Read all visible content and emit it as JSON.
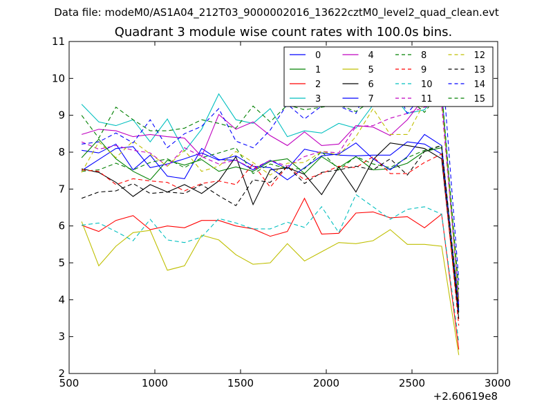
{
  "suptitle": "Data file: modeM0/AS1A04_212T03_9000002016_13622cztM0_level2_quad_clean.evt",
  "chart_data": {
    "type": "line",
    "title": "Quadrant 3 module wise count rates with 100.0s bins.",
    "xlabel": "",
    "ylabel": "",
    "x_offset_label": "+2.60619e8",
    "xlim": [
      500,
      3000
    ],
    "ylim": [
      2,
      11
    ],
    "xticks": [
      500,
      1000,
      1500,
      2000,
      2500,
      3000
    ],
    "yticks": [
      2,
      3,
      4,
      5,
      6,
      7,
      8,
      9,
      10,
      11
    ],
    "legend_position": "top-right",
    "legend_columns": 4,
    "x": [
      573,
      673,
      773,
      873,
      973,
      1073,
      1173,
      1273,
      1373,
      1473,
      1573,
      1673,
      1773,
      1873,
      1973,
      2073,
      2173,
      2273,
      2373,
      2473,
      2573,
      2673,
      2773
    ],
    "series": [
      {
        "name": "0",
        "color": "#0000ff",
        "dash": false,
        "values": [
          8.05,
          7.98,
          8.22,
          7.52,
          7.92,
          7.35,
          7.28,
          8.1,
          7.8,
          7.78,
          7.52,
          7.78,
          7.55,
          8.08,
          7.98,
          7.92,
          7.9,
          7.92,
          7.92,
          8.28,
          8.22,
          7.95,
          3.85
        ]
      },
      {
        "name": "1",
        "color": "#008000",
        "dash": false,
        "values": [
          7.85,
          8.35,
          7.82,
          7.48,
          7.25,
          7.78,
          7.65,
          7.8,
          7.48,
          7.6,
          7.48,
          7.75,
          7.82,
          7.42,
          7.88,
          7.58,
          7.88,
          7.52,
          7.55,
          7.7,
          8.02,
          8.12,
          3.65
        ]
      },
      {
        "name": "2",
        "color": "#ff0000",
        "dash": false,
        "values": [
          6.02,
          5.85,
          6.15,
          6.28,
          5.9,
          6.0,
          5.95,
          6.15,
          6.15,
          6.0,
          5.92,
          5.72,
          5.85,
          6.75,
          5.78,
          5.8,
          6.35,
          6.38,
          6.22,
          6.25,
          5.95,
          6.32,
          2.65
        ]
      },
      {
        "name": "3",
        "color": "#00bfbf",
        "dash": false,
        "values": [
          9.3,
          8.82,
          8.72,
          8.88,
          8.28,
          8.9,
          8.02,
          8.62,
          9.58,
          8.88,
          8.78,
          9.18,
          8.42,
          8.58,
          8.52,
          8.78,
          8.65,
          9.28,
          9.65,
          9.05,
          9.15,
          9.72,
          4.05
        ]
      },
      {
        "name": "4",
        "color": "#bf00bf",
        "dash": false,
        "values": [
          8.48,
          8.62,
          8.58,
          8.42,
          8.48,
          8.42,
          8.38,
          7.88,
          9.02,
          8.62,
          8.82,
          8.45,
          8.18,
          8.55,
          8.18,
          8.22,
          8.72,
          8.68,
          8.45,
          8.88,
          9.48,
          9.5,
          3.95
        ]
      },
      {
        "name": "5",
        "color": "#bfbf00",
        "dash": false,
        "values": [
          6.12,
          4.92,
          5.45,
          5.82,
          5.88,
          4.8,
          4.92,
          5.75,
          5.62,
          5.22,
          4.96,
          5.0,
          5.52,
          5.05,
          5.3,
          5.55,
          5.52,
          5.6,
          5.9,
          5.5,
          5.5,
          5.45,
          2.5
        ]
      },
      {
        "name": "6",
        "color": "#000000",
        "dash": false,
        "values": [
          7.55,
          7.45,
          7.18,
          6.8,
          7.12,
          6.92,
          7.12,
          6.88,
          7.22,
          7.88,
          6.58,
          7.52,
          7.58,
          7.4,
          6.85,
          7.6,
          6.92,
          7.8,
          8.25,
          8.18,
          8.1,
          7.82,
          3.48
        ]
      },
      {
        "name": "7",
        "color": "#0000ff",
        "dash": false,
        "values": [
          7.5,
          7.8,
          8.1,
          8.15,
          7.58,
          7.68,
          7.82,
          7.98,
          7.78,
          7.9,
          7.62,
          7.58,
          7.25,
          7.58,
          7.9,
          7.95,
          8.25,
          7.82,
          7.52,
          7.88,
          8.48,
          8.18,
          3.7
        ]
      },
      {
        "name": "8",
        "color": "#008000",
        "dash": true,
        "values": [
          7.48,
          7.52,
          7.7,
          7.52,
          7.72,
          7.82,
          7.58,
          7.85,
          7.98,
          8.12,
          7.42,
          7.68,
          7.55,
          7.55,
          8.02,
          7.52,
          7.88,
          7.68,
          7.58,
          7.85,
          8.05,
          8.18,
          3.8
        ]
      },
      {
        "name": "9",
        "color": "#ff0000",
        "dash": true,
        "values": [
          7.52,
          7.48,
          7.12,
          7.28,
          7.22,
          7.18,
          6.95,
          7.15,
          7.22,
          7.12,
          7.68,
          7.05,
          7.62,
          7.25,
          7.42,
          7.62,
          7.58,
          7.88,
          7.42,
          7.42,
          7.72,
          7.95,
          3.3
        ]
      },
      {
        "name": "10",
        "color": "#00bfbf",
        "dash": true,
        "values": [
          6.02,
          6.08,
          5.85,
          5.6,
          6.18,
          5.62,
          5.55,
          5.7,
          6.2,
          6.08,
          5.92,
          5.92,
          6.1,
          5.96,
          6.52,
          5.82,
          6.85,
          6.52,
          6.18,
          6.45,
          6.52,
          6.32,
          2.85
        ]
      },
      {
        "name": "11",
        "color": "#bf00bf",
        "dash": true,
        "values": [
          8.28,
          8.08,
          8.18,
          8.05,
          7.98,
          7.62,
          8.12,
          7.88,
          7.68,
          7.78,
          7.55,
          7.78,
          7.62,
          7.88,
          8.02,
          7.98,
          8.7,
          8.72,
          8.92,
          9.05,
          9.22,
          9.28,
          4.02
        ]
      },
      {
        "name": "12",
        "color": "#bfbf00",
        "dash": true,
        "values": [
          7.45,
          8.28,
          7.85,
          8.3,
          7.95,
          7.62,
          8.05,
          7.48,
          7.62,
          8.02,
          7.72,
          7.38,
          7.7,
          7.72,
          8.02,
          7.92,
          8.42,
          9.18,
          8.48,
          8.48,
          9.35,
          9.48,
          3.95
        ]
      },
      {
        "name": "13",
        "color": "#000000",
        "dash": true,
        "values": [
          6.75,
          6.92,
          6.95,
          7.15,
          6.88,
          6.92,
          6.88,
          7.12,
          6.82,
          6.55,
          7.25,
          7.18,
          7.62,
          7.15,
          7.45,
          7.52,
          7.62,
          7.52,
          7.82,
          7.38,
          8.02,
          8.18,
          3.68
        ]
      },
      {
        "name": "14",
        "color": "#0000ff",
        "dash": true,
        "values": [
          8.22,
          8.28,
          8.52,
          8.25,
          8.88,
          8.12,
          8.5,
          8.7,
          9.18,
          8.3,
          8.12,
          8.6,
          9.3,
          8.9,
          9.25,
          9.25,
          9.05,
          10.05,
          10.05,
          9.05,
          9.62,
          10.58,
          4.52
        ]
      },
      {
        "name": "15",
        "color": "#008000",
        "dash": true,
        "values": [
          9.0,
          8.38,
          9.22,
          8.88,
          8.58,
          8.58,
          8.65,
          8.88,
          8.78,
          8.65,
          9.25,
          8.82,
          9.28,
          9.15,
          9.22,
          9.28,
          9.1,
          9.42,
          10.12,
          9.48,
          9.08,
          9.68,
          4.28
        ]
      }
    ]
  }
}
